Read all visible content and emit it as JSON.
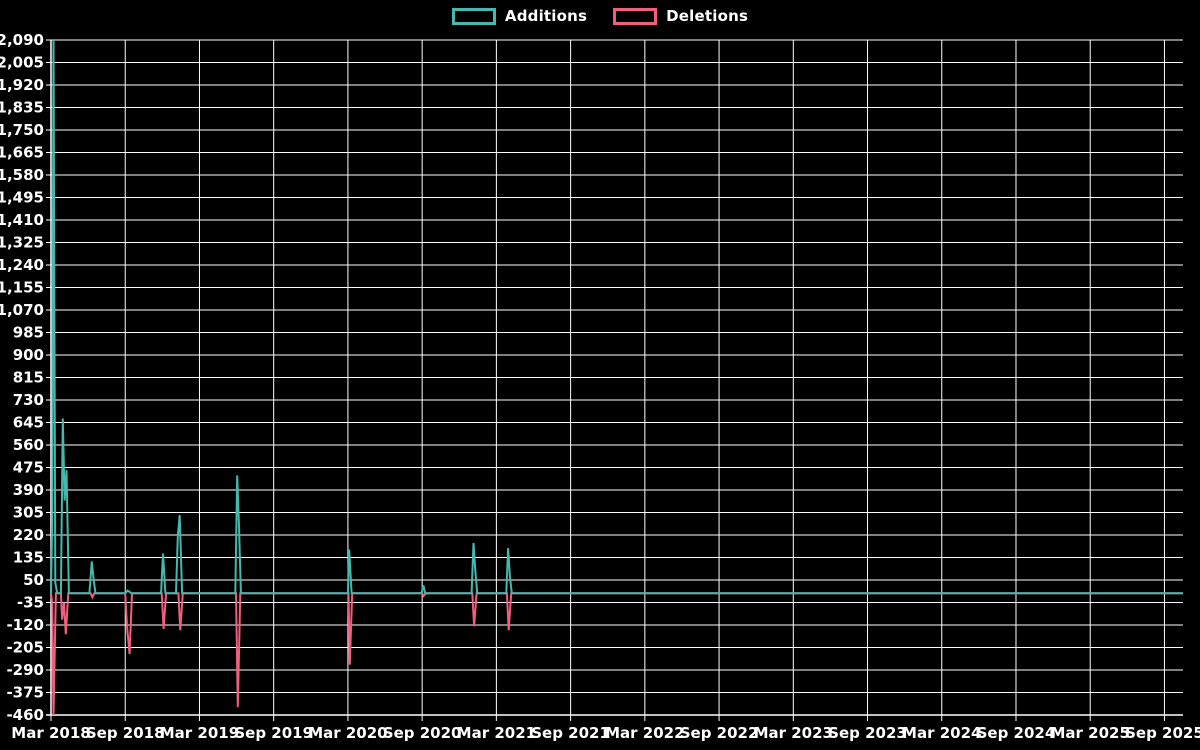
{
  "colors": {
    "background": "#000000",
    "grid": "#ffffff",
    "axis": "#ffffff",
    "text": "#ffffff",
    "additions": "#46b8ae",
    "deletions": "#f05f7d"
  },
  "legend": {
    "items": [
      {
        "label": "Additions",
        "color": "#46b8ae"
      },
      {
        "label": "Deletions",
        "color": "#f05f7d"
      }
    ]
  },
  "chart_data": {
    "type": "line",
    "title": "",
    "xlabel": "",
    "ylabel": "",
    "grid": true,
    "legend_position": "top-center",
    "x_axis": {
      "unit": "months since Mar 2018",
      "range": [
        0,
        91.5
      ],
      "tick_months": [
        0,
        6,
        12,
        18,
        24,
        30,
        36,
        42,
        48,
        54,
        60,
        66,
        72,
        78,
        84,
        90
      ],
      "tick_labels": [
        "Mar 2018",
        "Sep 2018",
        "Mar 2019",
        "Sep 2019",
        "Mar 2020",
        "Sep 2020",
        "Mar 2021",
        "Sep 2021",
        "Mar 2022",
        "Sep 2022",
        "Mar 2023",
        "Sep 2023",
        "Mar 2024",
        "Sep 2024",
        "Mar 2025",
        "Sep 2025"
      ]
    },
    "y_axis": {
      "range": [
        -460,
        2090
      ],
      "tick_step": 85,
      "tick_values": [
        2090,
        2005,
        1920,
        1835,
        1750,
        1665,
        1580,
        1495,
        1410,
        1325,
        1240,
        1155,
        1070,
        985,
        900,
        815,
        730,
        645,
        560,
        475,
        390,
        305,
        220,
        135,
        50,
        -35,
        -120,
        -205,
        -290,
        -375,
        -460
      ],
      "tick_labels": [
        "2,090",
        "2,005",
        "1,920",
        "1,835",
        "1,750",
        "1,665",
        "1,580",
        "1,495",
        "1,410",
        "1,325",
        "1,240",
        "1,155",
        "1,070",
        "985",
        "900",
        "815",
        "730",
        "645",
        "560",
        "475",
        "390",
        "305",
        "220",
        "135",
        "50",
        "-35",
        "-120",
        "-205",
        "-290",
        "-375",
        "-460"
      ]
    },
    "series": [
      {
        "name": "Deletions",
        "color": "#f05f7d",
        "points": [
          [
            0,
            0
          ],
          [
            0.1,
            -35
          ],
          [
            0.2,
            -460
          ],
          [
            0.4,
            0
          ],
          [
            0.8,
            0
          ],
          [
            0.9,
            -100
          ],
          [
            1.05,
            -35
          ],
          [
            1.2,
            -155
          ],
          [
            1.4,
            0
          ],
          [
            3.2,
            0
          ],
          [
            3.35,
            -15
          ],
          [
            3.5,
            0
          ],
          [
            6.0,
            0
          ],
          [
            6.15,
            -130
          ],
          [
            6.35,
            -230
          ],
          [
            6.55,
            0
          ],
          [
            8.95,
            0
          ],
          [
            9.1,
            -135
          ],
          [
            9.3,
            0
          ],
          [
            10.3,
            0
          ],
          [
            10.45,
            -140
          ],
          [
            10.65,
            0
          ],
          [
            14.95,
            0
          ],
          [
            15.1,
            -430
          ],
          [
            15.3,
            0
          ],
          [
            24.05,
            0
          ],
          [
            24.15,
            -270
          ],
          [
            24.35,
            0
          ],
          [
            30.0,
            0
          ],
          [
            30.12,
            -10
          ],
          [
            30.3,
            0
          ],
          [
            34.05,
            0
          ],
          [
            34.2,
            -125
          ],
          [
            34.4,
            0
          ],
          [
            36.85,
            0
          ],
          [
            37.0,
            -140
          ],
          [
            37.2,
            0
          ],
          [
            91.5,
            0
          ]
        ]
      },
      {
        "name": "Additions",
        "color": "#46b8ae",
        "points": [
          [
            0,
            0
          ],
          [
            0.1,
            275
          ],
          [
            0.2,
            2090
          ],
          [
            0.35,
            40
          ],
          [
            0.5,
            0
          ],
          [
            0.8,
            0
          ],
          [
            0.95,
            660
          ],
          [
            1.1,
            350
          ],
          [
            1.25,
            465
          ],
          [
            1.45,
            0
          ],
          [
            3.1,
            0
          ],
          [
            3.3,
            120
          ],
          [
            3.45,
            50
          ],
          [
            3.6,
            0
          ],
          [
            6.0,
            0
          ],
          [
            6.2,
            10
          ],
          [
            6.5,
            0
          ],
          [
            8.9,
            0
          ],
          [
            9.05,
            150
          ],
          [
            9.25,
            0
          ],
          [
            10.1,
            0
          ],
          [
            10.25,
            215
          ],
          [
            10.4,
            295
          ],
          [
            10.6,
            0
          ],
          [
            14.9,
            0
          ],
          [
            15.05,
            445
          ],
          [
            15.2,
            255
          ],
          [
            15.35,
            0
          ],
          [
            24.0,
            0
          ],
          [
            24.1,
            165
          ],
          [
            24.3,
            0
          ],
          [
            29.95,
            0
          ],
          [
            30.1,
            30
          ],
          [
            30.25,
            0
          ],
          [
            34.0,
            0
          ],
          [
            34.15,
            190
          ],
          [
            34.3,
            85
          ],
          [
            34.45,
            0
          ],
          [
            36.8,
            0
          ],
          [
            36.95,
            170
          ],
          [
            37.1,
            60
          ],
          [
            37.25,
            0
          ],
          [
            91.5,
            0
          ]
        ]
      }
    ]
  }
}
